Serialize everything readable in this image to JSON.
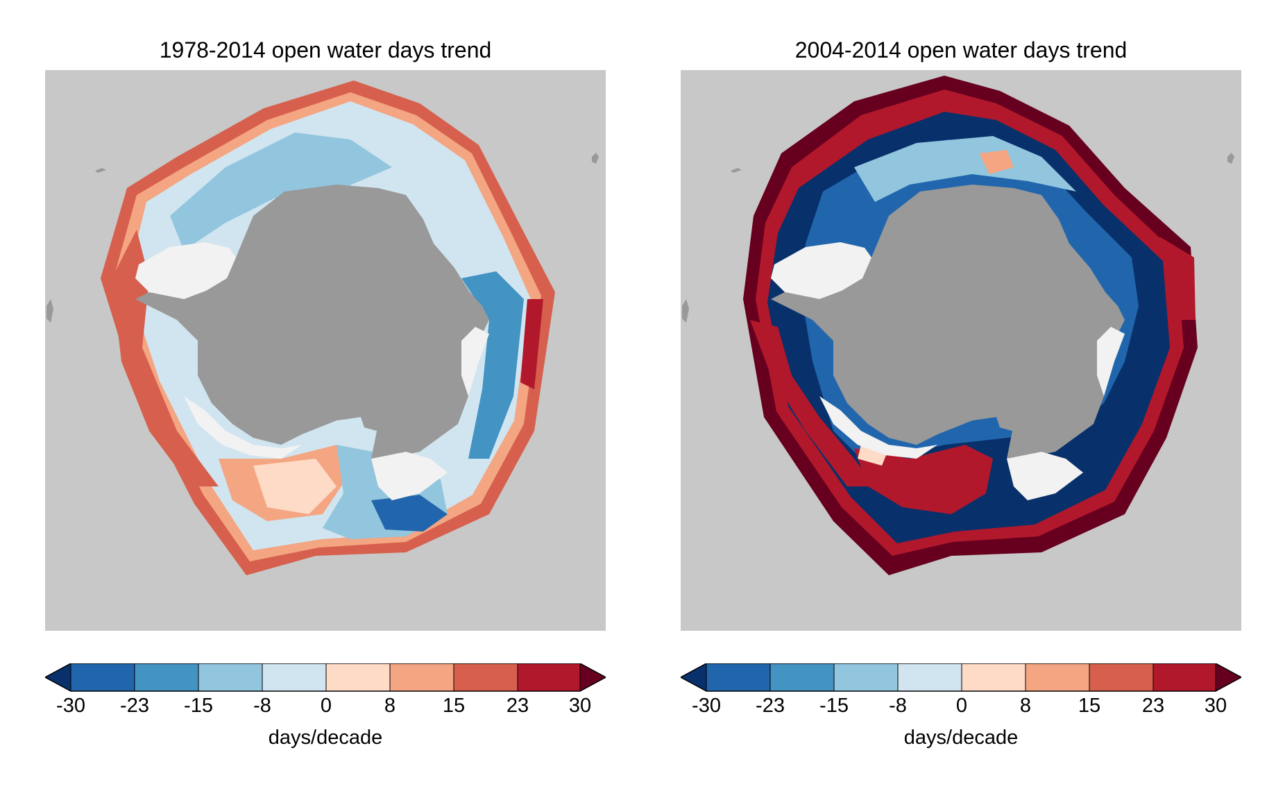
{
  "panels": [
    {
      "title": "1978-2014 open water days trend",
      "colorbar": {
        "label": "days/decade",
        "ticks": [
          "-30",
          "-23",
          "-15",
          "-8",
          "0",
          "8",
          "15",
          "23",
          "30"
        ]
      }
    },
    {
      "title": "2004-2014 open water days trend",
      "colorbar": {
        "label": "days/decade",
        "ticks": [
          "-30",
          "-23",
          "-15",
          "-8",
          "0",
          "8",
          "15",
          "23",
          "30"
        ]
      }
    }
  ],
  "colorbar_bins": [
    "#08306b",
    "#2166ac",
    "#4393c3",
    "#92c5de",
    "#d1e5f0",
    "#fddbc7",
    "#f4a582",
    "#d6604d",
    "#b2182b",
    "#67001f"
  ],
  "colors": {
    "ocean_background": "#c8c8c8",
    "antarctica_land": "#999999",
    "ice_shelf": "#f2f2f2"
  }
}
